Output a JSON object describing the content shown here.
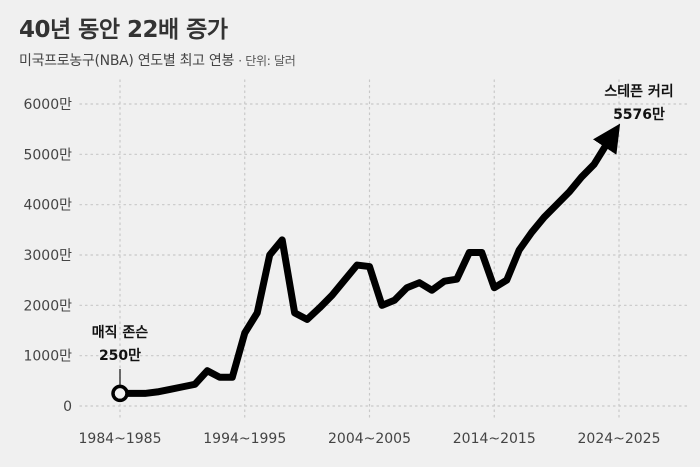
{
  "header": {
    "title": "40년 동안 22배 증가",
    "subtitle": "미국프로농구(NBA) 연도별 최고 연봉",
    "unit": "· 단위: 달러"
  },
  "chart_data": {
    "type": "line",
    "title": "40년 동안 22배 증가",
    "subtitle": "미국프로농구(NBA) 연도별 최고 연봉",
    "unit_label": "단위: 달러",
    "xlabel": "",
    "ylabel": "",
    "ylim": [
      0,
      6000
    ],
    "xlim": [
      1984,
      2030
    ],
    "grid": true,
    "y_ticks": [
      0,
      1000,
      2000,
      3000,
      4000,
      5000,
      6000
    ],
    "y_tick_labels": [
      "0",
      "1000만",
      "2000만",
      "3000만",
      "4000만",
      "5000만",
      "6000만"
    ],
    "x_ticks": [
      1984,
      1994,
      2004,
      2014,
      2024
    ],
    "x_tick_labels": [
      "1984~1985",
      "1994~1995",
      "2004~2005",
      "2014~2015",
      "2024~2025"
    ],
    "series": [
      {
        "name": "연도별 최고 연봉",
        "x": [
          1984,
          1985,
          1986,
          1987,
          1988,
          1989,
          1990,
          1991,
          1992,
          1993,
          1994,
          1995,
          1996,
          1997,
          1998,
          1999,
          2000,
          2001,
          2002,
          2003,
          2004,
          2005,
          2006,
          2007,
          2008,
          2009,
          2010,
          2011,
          2012,
          2013,
          2014,
          2015,
          2016,
          2017,
          2018,
          2019,
          2020,
          2021,
          2022,
          2023,
          2024
        ],
        "values": [
          250,
          250,
          250,
          280,
          330,
          380,
          430,
          700,
          570,
          570,
          1450,
          1850,
          3000,
          3300,
          1850,
          1720,
          1950,
          2200,
          2500,
          2800,
          2770,
          2000,
          2100,
          2350,
          2450,
          2300,
          2480,
          2520,
          3050,
          3050,
          2350,
          2500,
          3100,
          3450,
          3750,
          4000,
          4250,
          4550,
          4800,
          5200,
          5576
        ]
      }
    ],
    "annotations": [
      {
        "name": "매직 존슨",
        "value_label": "250만",
        "x": 1984,
        "y": 250
      },
      {
        "name": "스테픈 커리",
        "value_label": "5576만",
        "x": 2024,
        "y": 5576
      }
    ],
    "colors": {
      "line": "#000000",
      "grid": "#c8c8c8",
      "background": "#f0f0f0"
    }
  }
}
